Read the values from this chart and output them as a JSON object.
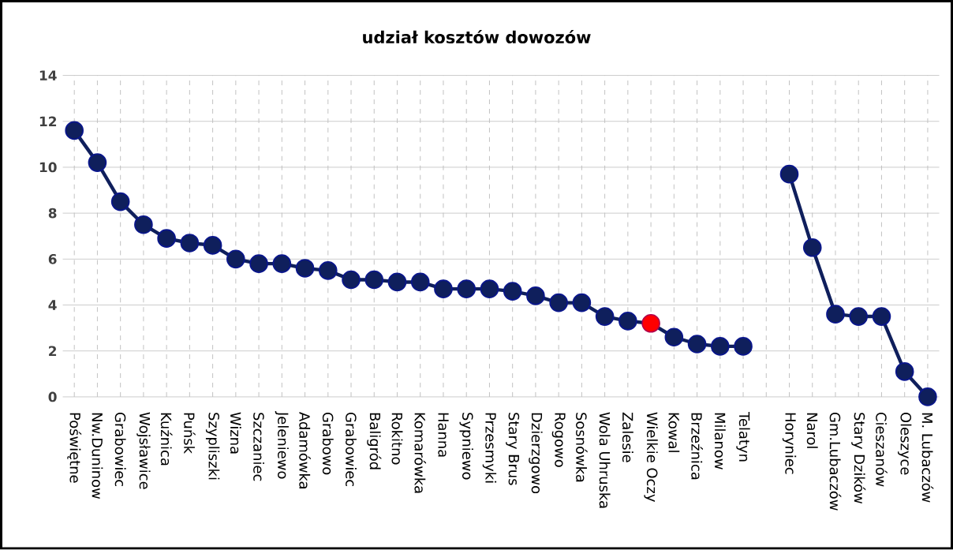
{
  "chart_data": {
    "type": "line",
    "title": "udział kosztów dowozów",
    "categories": [
      "Poświętne",
      "Nw.Duninow",
      "Grabowiec",
      "Wojsławice",
      "Kuźnica",
      "Puńsk",
      "Szypliszki",
      "Wizna",
      "Szczaniec",
      "Jeleniewo",
      "Adamówka",
      "Grabowo",
      "Grabowiec",
      "Baligród",
      "Rokitno",
      "Komarówka",
      "Hanna",
      "Sypniewo",
      "Przesmyki",
      "Stary Brus",
      "Dzierzgowo",
      "Rogowo",
      "Sosnówka",
      "Wola Uhruska",
      "Zalesie",
      "Wielkie Oczy",
      "Kowal",
      "Brzeźnica",
      "Milanow",
      "Telatyn",
      null,
      "Horyniec",
      "Narol",
      "Gm.Lubaczów",
      "Stary Dzików",
      "Cieszanów",
      "Oleszyce",
      "M. Lubaczów"
    ],
    "series": [
      {
        "color": "#0f1f5c",
        "values": [
          11.6,
          10.2,
          8.5,
          7.5,
          6.9,
          6.7,
          6.6,
          6.0,
          5.8,
          5.8,
          5.6,
          5.5,
          5.1,
          5.1,
          5.0,
          5.0,
          4.7,
          4.7,
          4.7,
          4.6,
          4.4,
          4.1,
          4.1,
          3.5,
          3.3,
          3.2,
          2.6,
          2.3,
          2.2,
          2.2,
          null,
          9.7,
          6.5,
          3.6,
          3.5,
          3.5,
          1.1,
          0.0
        ],
        "colors": [
          "#0f1f5c",
          "#0f1f5c",
          "#0f1f5c",
          "#0f1f5c",
          "#0f1f5c",
          "#0f1f5c",
          "#0f1f5c",
          "#0f1f5c",
          "#0f1f5c",
          "#0f1f5c",
          "#0f1f5c",
          "#0f1f5c",
          "#0f1f5c",
          "#0f1f5c",
          "#0f1f5c",
          "#0f1f5c",
          "#0f1f5c",
          "#0f1f5c",
          "#0f1f5c",
          "#0f1f5c",
          "#0f1f5c",
          "#0f1f5c",
          "#0f1f5c",
          "#0f1f5c",
          "#0f1f5c",
          "#ff0000",
          "#0f1f5c",
          "#0f1f5c",
          "#0f1f5c",
          "#0f1f5c",
          null,
          "#0f1f5c",
          "#0f1f5c",
          "#0f1f5c",
          "#0f1f5c",
          "#0f1f5c",
          "#0f1f5c",
          "#0f1f5c"
        ]
      }
    ],
    "ylim": [
      0,
      14
    ],
    "yticks": [
      0,
      2,
      4,
      6,
      8,
      10,
      12,
      14
    ],
    "grid": true,
    "marker": "circle",
    "line_style": "solid"
  }
}
